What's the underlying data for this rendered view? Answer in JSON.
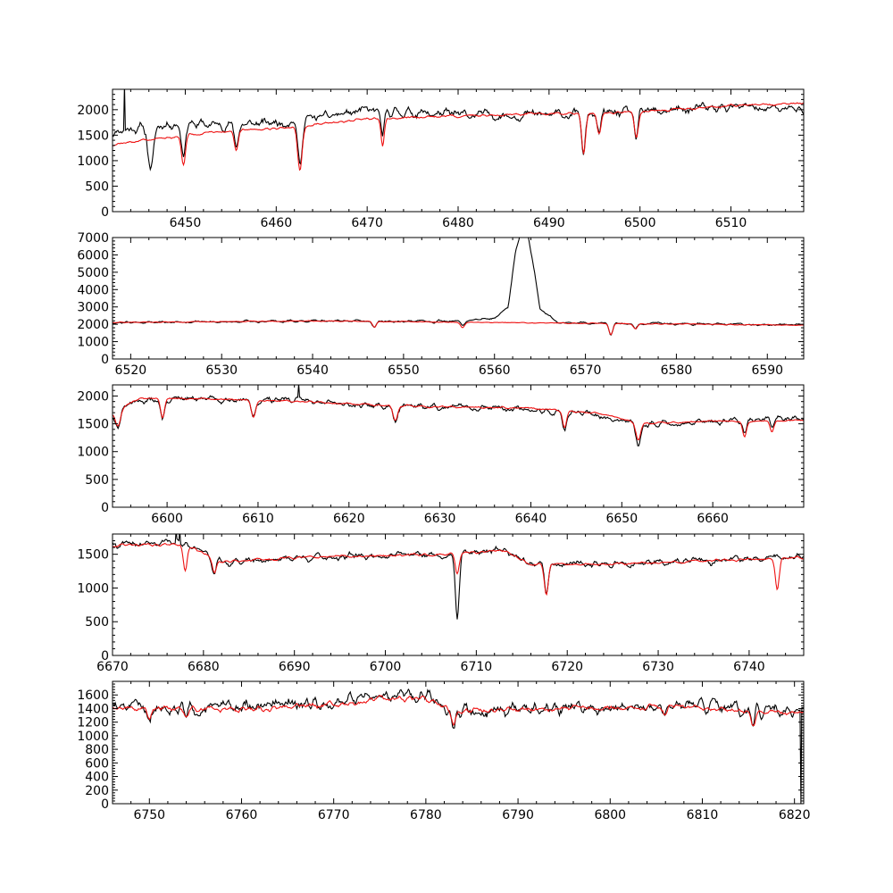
{
  "chart_data": [
    {
      "type": "line",
      "title": "",
      "xlabel": "",
      "ylabel": "",
      "xlim": [
        6442,
        6518
      ],
      "ylim": [
        0,
        2400
      ],
      "xticks": [
        6450,
        6460,
        6470,
        6480,
        6490,
        6500,
        6510
      ],
      "yticks": [
        0,
        500,
        1000,
        1500,
        2000
      ],
      "observed_continuum": [
        [
          6442,
          1580
        ],
        [
          6448,
          1720
        ],
        [
          6456,
          1700
        ],
        [
          6462,
          1780
        ],
        [
          6470,
          1980
        ],
        [
          6480,
          1900
        ],
        [
          6490,
          1900
        ],
        [
          6500,
          1950
        ],
        [
          6510,
          2050
        ],
        [
          6518,
          2000
        ]
      ],
      "model_continuum": [
        [
          6442,
          1320
        ],
        [
          6450,
          1500
        ],
        [
          6456,
          1600
        ],
        [
          6462,
          1660
        ],
        [
          6470,
          1820
        ],
        [
          6480,
          1880
        ],
        [
          6490,
          1920
        ],
        [
          6500,
          1960
        ],
        [
          6510,
          2080
        ],
        [
          6518,
          2120
        ]
      ],
      "lines": [
        [
          6446.2,
          900,
          0.4,
          "o"
        ],
        [
          6449.8,
          600,
          0.3,
          "b"
        ],
        [
          6455.6,
          400,
          0.3,
          "b"
        ],
        [
          6462.6,
          850,
          0.35,
          "b"
        ],
        [
          6471.7,
          550,
          0.25,
          "b"
        ],
        [
          6493.8,
          800,
          0.3,
          "b"
        ],
        [
          6495.5,
          400,
          0.3,
          "b"
        ],
        [
          6499.6,
          500,
          0.3,
          "b"
        ]
      ],
      "spikes": [
        [
          6443.3,
          2500
        ]
      ],
      "series": [
        {
          "name": "",
          "color": "#000000",
          "noise": 120,
          "seed": 11
        },
        {
          "name": "",
          "color": "#ee1111",
          "noise": 30,
          "seed": 12
        }
      ]
    },
    {
      "type": "line",
      "title": "",
      "xlabel": "",
      "ylabel": "",
      "xlim": [
        6518,
        6594
      ],
      "ylim": [
        0,
        7000
      ],
      "xticks": [
        6520,
        6530,
        6540,
        6550,
        6560,
        6570,
        6580,
        6590
      ],
      "yticks": [
        0,
        1000,
        2000,
        3000,
        4000,
        5000,
        6000,
        7000
      ],
      "observed_continuum": [
        [
          6518,
          2100
        ],
        [
          6540,
          2200
        ],
        [
          6555,
          2150
        ],
        [
          6560,
          2350
        ],
        [
          6561.5,
          3000
        ],
        [
          6562.3,
          6200
        ],
        [
          6562.8,
          7100
        ],
        [
          6563.7,
          7100
        ],
        [
          6564.2,
          5600
        ],
        [
          6565,
          2900
        ],
        [
          6567,
          2100
        ],
        [
          6594,
          1950
        ]
      ],
      "model_continuum": [
        [
          6518,
          2100
        ],
        [
          6540,
          2200
        ],
        [
          6560,
          2100
        ],
        [
          6594,
          1950
        ]
      ],
      "lines": [
        [
          6546.8,
          350,
          0.3,
          "b"
        ],
        [
          6556.5,
          300,
          0.3,
          "b"
        ],
        [
          6572.8,
          650,
          0.3,
          "b"
        ],
        [
          6575.5,
          300,
          0.3,
          "b"
        ]
      ],
      "spikes": [],
      "series": [
        {
          "name": "",
          "color": "#000000",
          "noise": 80,
          "seed": 21
        },
        {
          "name": "",
          "color": "#ee1111",
          "noise": 30,
          "seed": 22
        }
      ]
    },
    {
      "type": "line",
      "title": "",
      "xlabel": "",
      "ylabel": "",
      "xlim": [
        6594,
        6670
      ],
      "ylim": [
        0,
        2200
      ],
      "xticks": [
        6600,
        6610,
        6620,
        6630,
        6640,
        6650,
        6660
      ],
      "yticks": [
        0,
        500,
        1000,
        1500,
        2000
      ],
      "observed_continuum": [
        [
          6594,
          1700
        ],
        [
          6597,
          1920
        ],
        [
          6605,
          1950
        ],
        [
          6615,
          1920
        ],
        [
          6625,
          1800
        ],
        [
          6632,
          1800
        ],
        [
          6640,
          1750
        ],
        [
          6648,
          1650
        ],
        [
          6652,
          1480
        ],
        [
          6660,
          1550
        ],
        [
          6670,
          1620
        ]
      ],
      "model_continuum": [
        [
          6594,
          1700
        ],
        [
          6597,
          1960
        ],
        [
          6605,
          1950
        ],
        [
          6615,
          1900
        ],
        [
          6625,
          1820
        ],
        [
          6632,
          1800
        ],
        [
          6640,
          1780
        ],
        [
          6648,
          1680
        ],
        [
          6652,
          1500
        ],
        [
          6660,
          1550
        ],
        [
          6670,
          1560
        ]
      ],
      "lines": [
        [
          6594.6,
          300,
          0.4,
          "b"
        ],
        [
          6599.5,
          350,
          0.3,
          "b"
        ],
        [
          6609.5,
          300,
          0.35,
          "b"
        ],
        [
          6625.1,
          250,
          0.35,
          "b"
        ],
        [
          6643.7,
          300,
          0.3,
          "b"
        ],
        [
          6651.8,
          300,
          0.35,
          "b"
        ],
        [
          6663.5,
          280,
          0.3,
          "b"
        ],
        [
          6666.5,
          200,
          0.3,
          "b"
        ]
      ],
      "spikes": [
        [
          6614.5,
          2220
        ]
      ],
      "series": [
        {
          "name": "",
          "color": "#000000",
          "noise": 70,
          "seed": 31
        },
        {
          "name": "",
          "color": "#ee1111",
          "noise": 20,
          "seed": 32
        }
      ]
    },
    {
      "type": "line",
      "title": "",
      "xlabel": "",
      "ylabel": "",
      "xlim": [
        6670,
        6746
      ],
      "ylim": [
        0,
        1800
      ],
      "xticks": [
        6670,
        6680,
        6690,
        6700,
        6710,
        6720,
        6730,
        6740
      ],
      "yticks": [
        0,
        500,
        1000,
        1500
      ],
      "observed_continuum": [
        [
          6670,
          1630
        ],
        [
          6678,
          1680
        ],
        [
          6682,
          1380
        ],
        [
          6690,
          1450
        ],
        [
          6700,
          1480
        ],
        [
          6707,
          1500
        ],
        [
          6713,
          1580
        ],
        [
          6716,
          1350
        ],
        [
          6725,
          1350
        ],
        [
          6735,
          1400
        ],
        [
          6746,
          1450
        ]
      ],
      "model_continuum": [
        [
          6670,
          1630
        ],
        [
          6678,
          1650
        ],
        [
          6682,
          1380
        ],
        [
          6690,
          1450
        ],
        [
          6700,
          1480
        ],
        [
          6707,
          1500
        ],
        [
          6713,
          1560
        ],
        [
          6716,
          1350
        ],
        [
          6725,
          1350
        ],
        [
          6735,
          1400
        ],
        [
          6746,
          1450
        ]
      ],
      "lines": [
        [
          6678.0,
          400,
          0.3,
          "m"
        ],
        [
          6681.2,
          200,
          0.3,
          "b"
        ],
        [
          6707.9,
          1000,
          0.3,
          "o"
        ],
        [
          6707.9,
          300,
          0.3,
          "m"
        ],
        [
          6717.7,
          450,
          0.3,
          "b"
        ],
        [
          6743.1,
          450,
          0.3,
          "m"
        ]
      ],
      "spikes": [
        [
          6677.0,
          1850
        ],
        [
          6677.4,
          1850
        ]
      ],
      "series": [
        {
          "name": "",
          "color": "#000000",
          "noise": 65,
          "seed": 41
        },
        {
          "name": "",
          "color": "#ee1111",
          "noise": 25,
          "seed": 42
        }
      ]
    },
    {
      "type": "line",
      "title": "",
      "xlabel": "",
      "ylabel": "",
      "xlim": [
        6746,
        6821
      ],
      "ylim": [
        0,
        1800
      ],
      "xticks": [
        6750,
        6760,
        6770,
        6780,
        6790,
        6800,
        6810,
        6820
      ],
      "yticks": [
        0,
        200,
        400,
        600,
        800,
        1000,
        1200,
        1400,
        1600
      ],
      "observed_continuum": [
        [
          6746,
          1420
        ],
        [
          6760,
          1420
        ],
        [
          6770,
          1500
        ],
        [
          6775,
          1600
        ],
        [
          6780,
          1600
        ],
        [
          6783,
          1350
        ],
        [
          6790,
          1380
        ],
        [
          6800,
          1420
        ],
        [
          6810,
          1450
        ],
        [
          6815,
          1350
        ],
        [
          6820,
          1350
        ],
        [
          6821,
          1300
        ]
      ],
      "model_continuum": [
        [
          6746,
          1400
        ],
        [
          6760,
          1400
        ],
        [
          6770,
          1460
        ],
        [
          6775,
          1540
        ],
        [
          6780,
          1560
        ],
        [
          6783,
          1360
        ],
        [
          6790,
          1380
        ],
        [
          6800,
          1420
        ],
        [
          6810,
          1420
        ],
        [
          6815,
          1350
        ],
        [
          6821,
          1350
        ]
      ],
      "lines": [
        [
          6750,
          150,
          0.3,
          "b"
        ],
        [
          6754,
          150,
          0.3,
          "b"
        ],
        [
          6783,
          200,
          0.3,
          "b"
        ],
        [
          6806,
          120,
          0.3,
          "b"
        ],
        [
          6815.5,
          200,
          0.3,
          "b"
        ]
      ],
      "spikes": [
        [
          6820.7,
          0
        ]
      ],
      "series": [
        {
          "name": "",
          "color": "#000000",
          "noise": 120,
          "seed": 51
        },
        {
          "name": "",
          "color": "#ee1111",
          "noise": 50,
          "seed": 52
        }
      ]
    }
  ]
}
